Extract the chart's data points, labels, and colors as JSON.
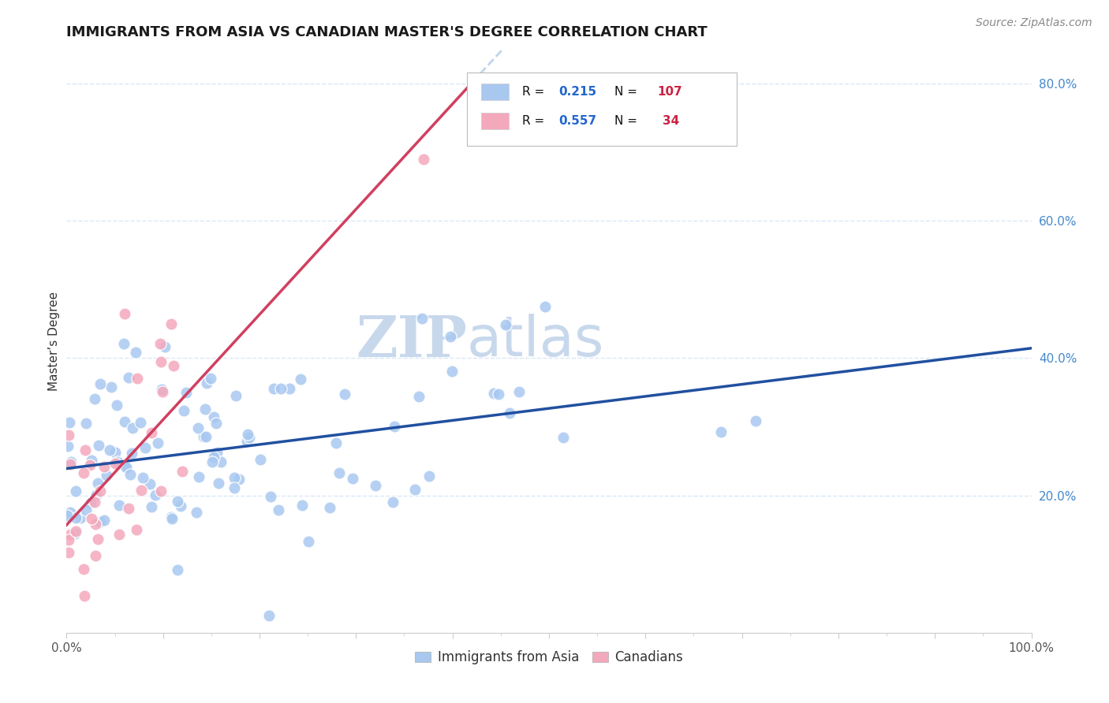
{
  "title": "IMMIGRANTS FROM ASIA VS CANADIAN MASTER'S DEGREE CORRELATION CHART",
  "source_text": "Source: ZipAtlas.com",
  "ylabel": "Master’s Degree",
  "x_min": 0.0,
  "x_max": 1.0,
  "y_min": 0.0,
  "y_max": 0.85,
  "color_blue": "#A8C8F0",
  "color_pink": "#F4A8BC",
  "color_blue_line": "#2050A0",
  "color_pink_line": "#D04060",
  "color_dashed": "#C0D4EC",
  "title_color": "#1a1a1a",
  "source_color": "#888888",
  "grid_color": "#D8E8F8",
  "axis_color": "#cccccc",
  "tick_color": "#4488CC",
  "legend_text_dark": "#111111",
  "legend_text_blue": "#2266CC",
  "legend_text_red": "#CC2244",
  "background_color": "#FFFFFF",
  "watermark_color": "#C8D8EC"
}
